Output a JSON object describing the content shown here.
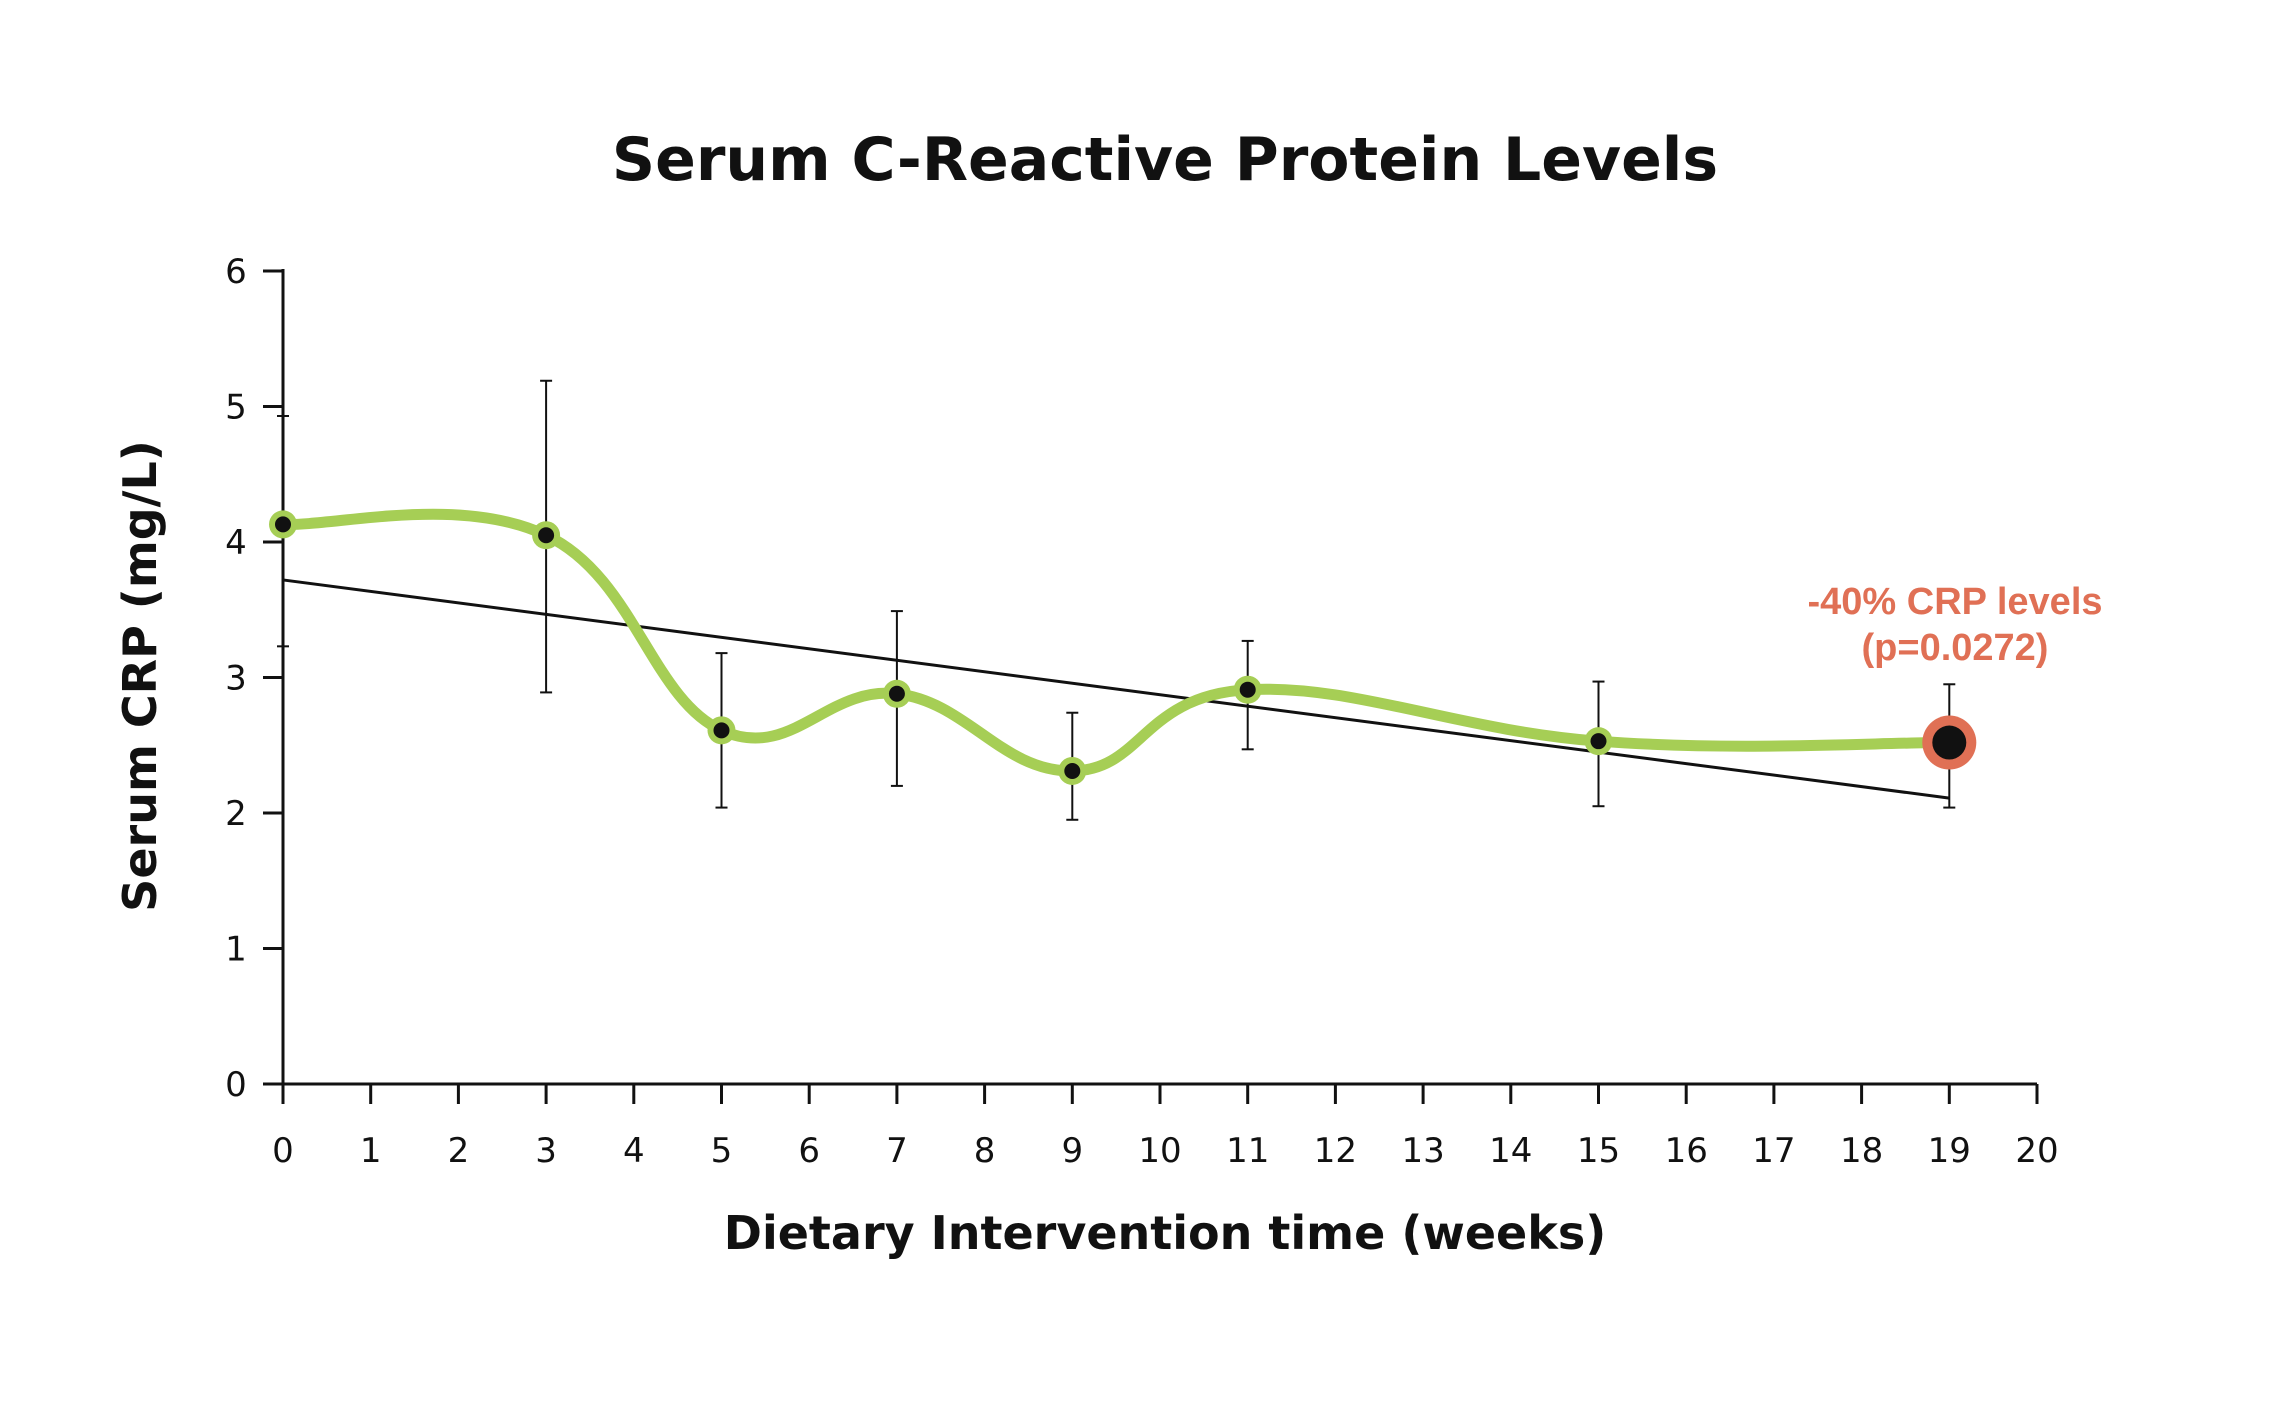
{
  "chart_data": {
    "type": "line",
    "title": "Serum C-Reactive Protein Levels",
    "xlabel": "Dietary Intervention time (weeks)",
    "ylabel": "Serum CRP (mg/L)",
    "xlim": [
      0,
      20
    ],
    "ylim": [
      0,
      6
    ],
    "x_ticks": [
      "0",
      "1",
      "2",
      "3",
      "4",
      "5",
      "6",
      "7",
      "8",
      "9",
      "10",
      "11",
      "12",
      "13",
      "14",
      "15",
      "16",
      "17",
      "18",
      "19",
      "20"
    ],
    "y_ticks": [
      "0",
      "1",
      "2",
      "3",
      "4",
      "5",
      "6"
    ],
    "grid": false,
    "series": [
      {
        "x": [
          0,
          3,
          5,
          7,
          9,
          11,
          15,
          19
        ],
        "values": [
          4.13,
          4.05,
          2.61,
          2.88,
          2.31,
          2.91,
          2.53,
          2.52
        ],
        "error_low": [
          3.23,
          2.89,
          2.04,
          2.2,
          1.95,
          2.47,
          2.05,
          2.04
        ],
        "error_high": [
          4.93,
          5.19,
          3.18,
          3.49,
          2.74,
          3.27,
          2.97,
          2.95
        ],
        "color": "#a6ce55"
      }
    ],
    "trendline": {
      "x": [
        0,
        19
      ],
      "values": [
        3.72,
        2.11
      ],
      "color": "#111111"
    },
    "highlight": {
      "x": 19,
      "value": 2.52,
      "color": "#e07055"
    },
    "annotation": {
      "lines": [
        "-40% CRP levels",
        "(p=0.0272)"
      ],
      "color": "#e07055"
    }
  }
}
